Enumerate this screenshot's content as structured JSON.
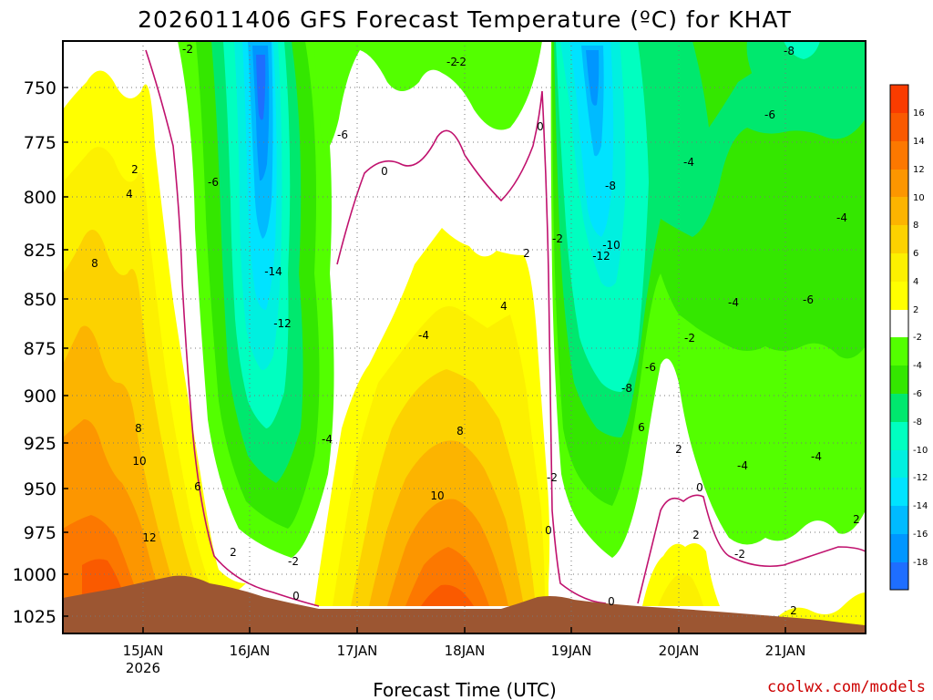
{
  "chart_data": {
    "type": "heatmap",
    "title": "2026011406 GFS Forecast Temperature (ºC) for KHAT",
    "xlabel": "Forecast Time (UTC)",
    "ylabel": "",
    "credit": "coolwx.com/models",
    "x_ticks": [
      "15JAN",
      "16JAN",
      "17JAN",
      "18JAN",
      "19JAN",
      "20JAN",
      "21JAN"
    ],
    "x_subtick": "2026",
    "y_ticks": [
      "750",
      "775",
      "800",
      "825",
      "850",
      "875",
      "900",
      "925",
      "950",
      "975",
      "1000",
      "1025"
    ],
    "ylim": [
      735,
      1035
    ],
    "time_range_days": [
      14.25,
      21.75
    ],
    "colorbar_labels": [
      "16",
      "14",
      "12",
      "10",
      "8",
      "6",
      "4",
      "2",
      "-2",
      "-4",
      "-6",
      "-8",
      "-10",
      "-12",
      "-14",
      "-16",
      "-18"
    ],
    "colorbar_colors": [
      "#fa3c00",
      "#fa5a00",
      "#fc7800",
      "#fc9600",
      "#fcb400",
      "#fcd200",
      "#fcf000",
      "#ffff00",
      "#ffffff",
      "#53ff00",
      "#34e700",
      "#00e86e",
      "#00ffc0",
      "#00f0e0",
      "#00e3ff",
      "#00bbff",
      "#0096ff",
      "#1e6eff"
    ],
    "contour_labels": [
      {
        "v": "-2"
      },
      {
        "v": "-2"
      },
      {
        "v": "-2"
      },
      {
        "v": "-8"
      },
      {
        "v": "0"
      },
      {
        "v": "-6"
      },
      {
        "v": "-6"
      },
      {
        "v": "-4"
      },
      {
        "v": "2"
      },
      {
        "v": "4"
      },
      {
        "v": "0"
      },
      {
        "v": "-8"
      },
      {
        "v": "-4"
      },
      {
        "v": "-6"
      },
      {
        "v": "-10"
      },
      {
        "v": "-12"
      },
      {
        "v": "-2"
      },
      {
        "v": "2"
      },
      {
        "v": "-4"
      },
      {
        "v": "-6"
      },
      {
        "v": "8"
      },
      {
        "v": "-14"
      },
      {
        "v": "-12"
      },
      {
        "v": "4"
      },
      {
        "v": "-2"
      },
      {
        "v": "-4"
      },
      {
        "v": "-8"
      },
      {
        "v": "-6"
      },
      {
        "v": "8"
      },
      {
        "v": "8"
      },
      {
        "v": "-4"
      },
      {
        "v": "2"
      },
      {
        "v": "-4"
      },
      {
        "v": "6"
      },
      {
        "v": "-2"
      },
      {
        "v": "0"
      },
      {
        "v": "10"
      },
      {
        "v": "10"
      },
      {
        "v": "-4"
      },
      {
        "v": "6"
      },
      {
        "v": "0"
      },
      {
        "v": "12"
      },
      {
        "v": "2"
      },
      {
        "v": "2"
      },
      {
        "v": "2"
      },
      {
        "v": "-2"
      },
      {
        "v": "-2"
      },
      {
        "v": "0"
      },
      {
        "v": "0"
      },
      {
        "v": "2"
      }
    ]
  }
}
